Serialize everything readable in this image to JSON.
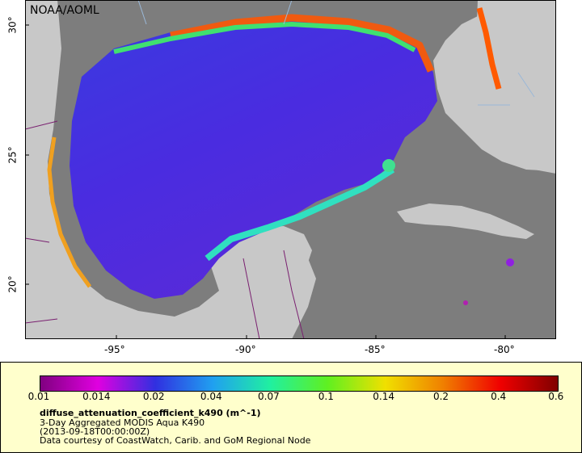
{
  "source_label": "NOAA/AOML",
  "axes": {
    "x_ticks": [
      "-95°",
      "-90°",
      "-85°",
      "-80°"
    ],
    "y_ticks": [
      "30°",
      "25°",
      "20°"
    ]
  },
  "legend": {
    "ticks": [
      "0.01",
      "0.014",
      "0.02",
      "0.04",
      "0.07",
      "0.1",
      "0.14",
      "0.2",
      "0.4",
      "0.6"
    ],
    "variable": "diffuse_attenuation_coefficient_k490 (m^-1)",
    "dataset": "3-Day Aggregated MODIS Aqua K490",
    "time": "(2013-09-18T00:00:00Z)",
    "credit": "Data courtesy of CoastWatch, Carib. and GoM Regional Node"
  },
  "colors": {
    "land": "#c8c8c8",
    "nodata": "#7d7d7d",
    "rivers": "#9ab8d8",
    "borders": "#7a2070",
    "legend_bg": "#ffffcc",
    "colorbar": [
      "#800080",
      "#e000e0",
      "#3030e0",
      "#20a0f0",
      "#20f0a0",
      "#60f020",
      "#f0e000",
      "#f08000",
      "#f00000",
      "#800000"
    ]
  }
}
